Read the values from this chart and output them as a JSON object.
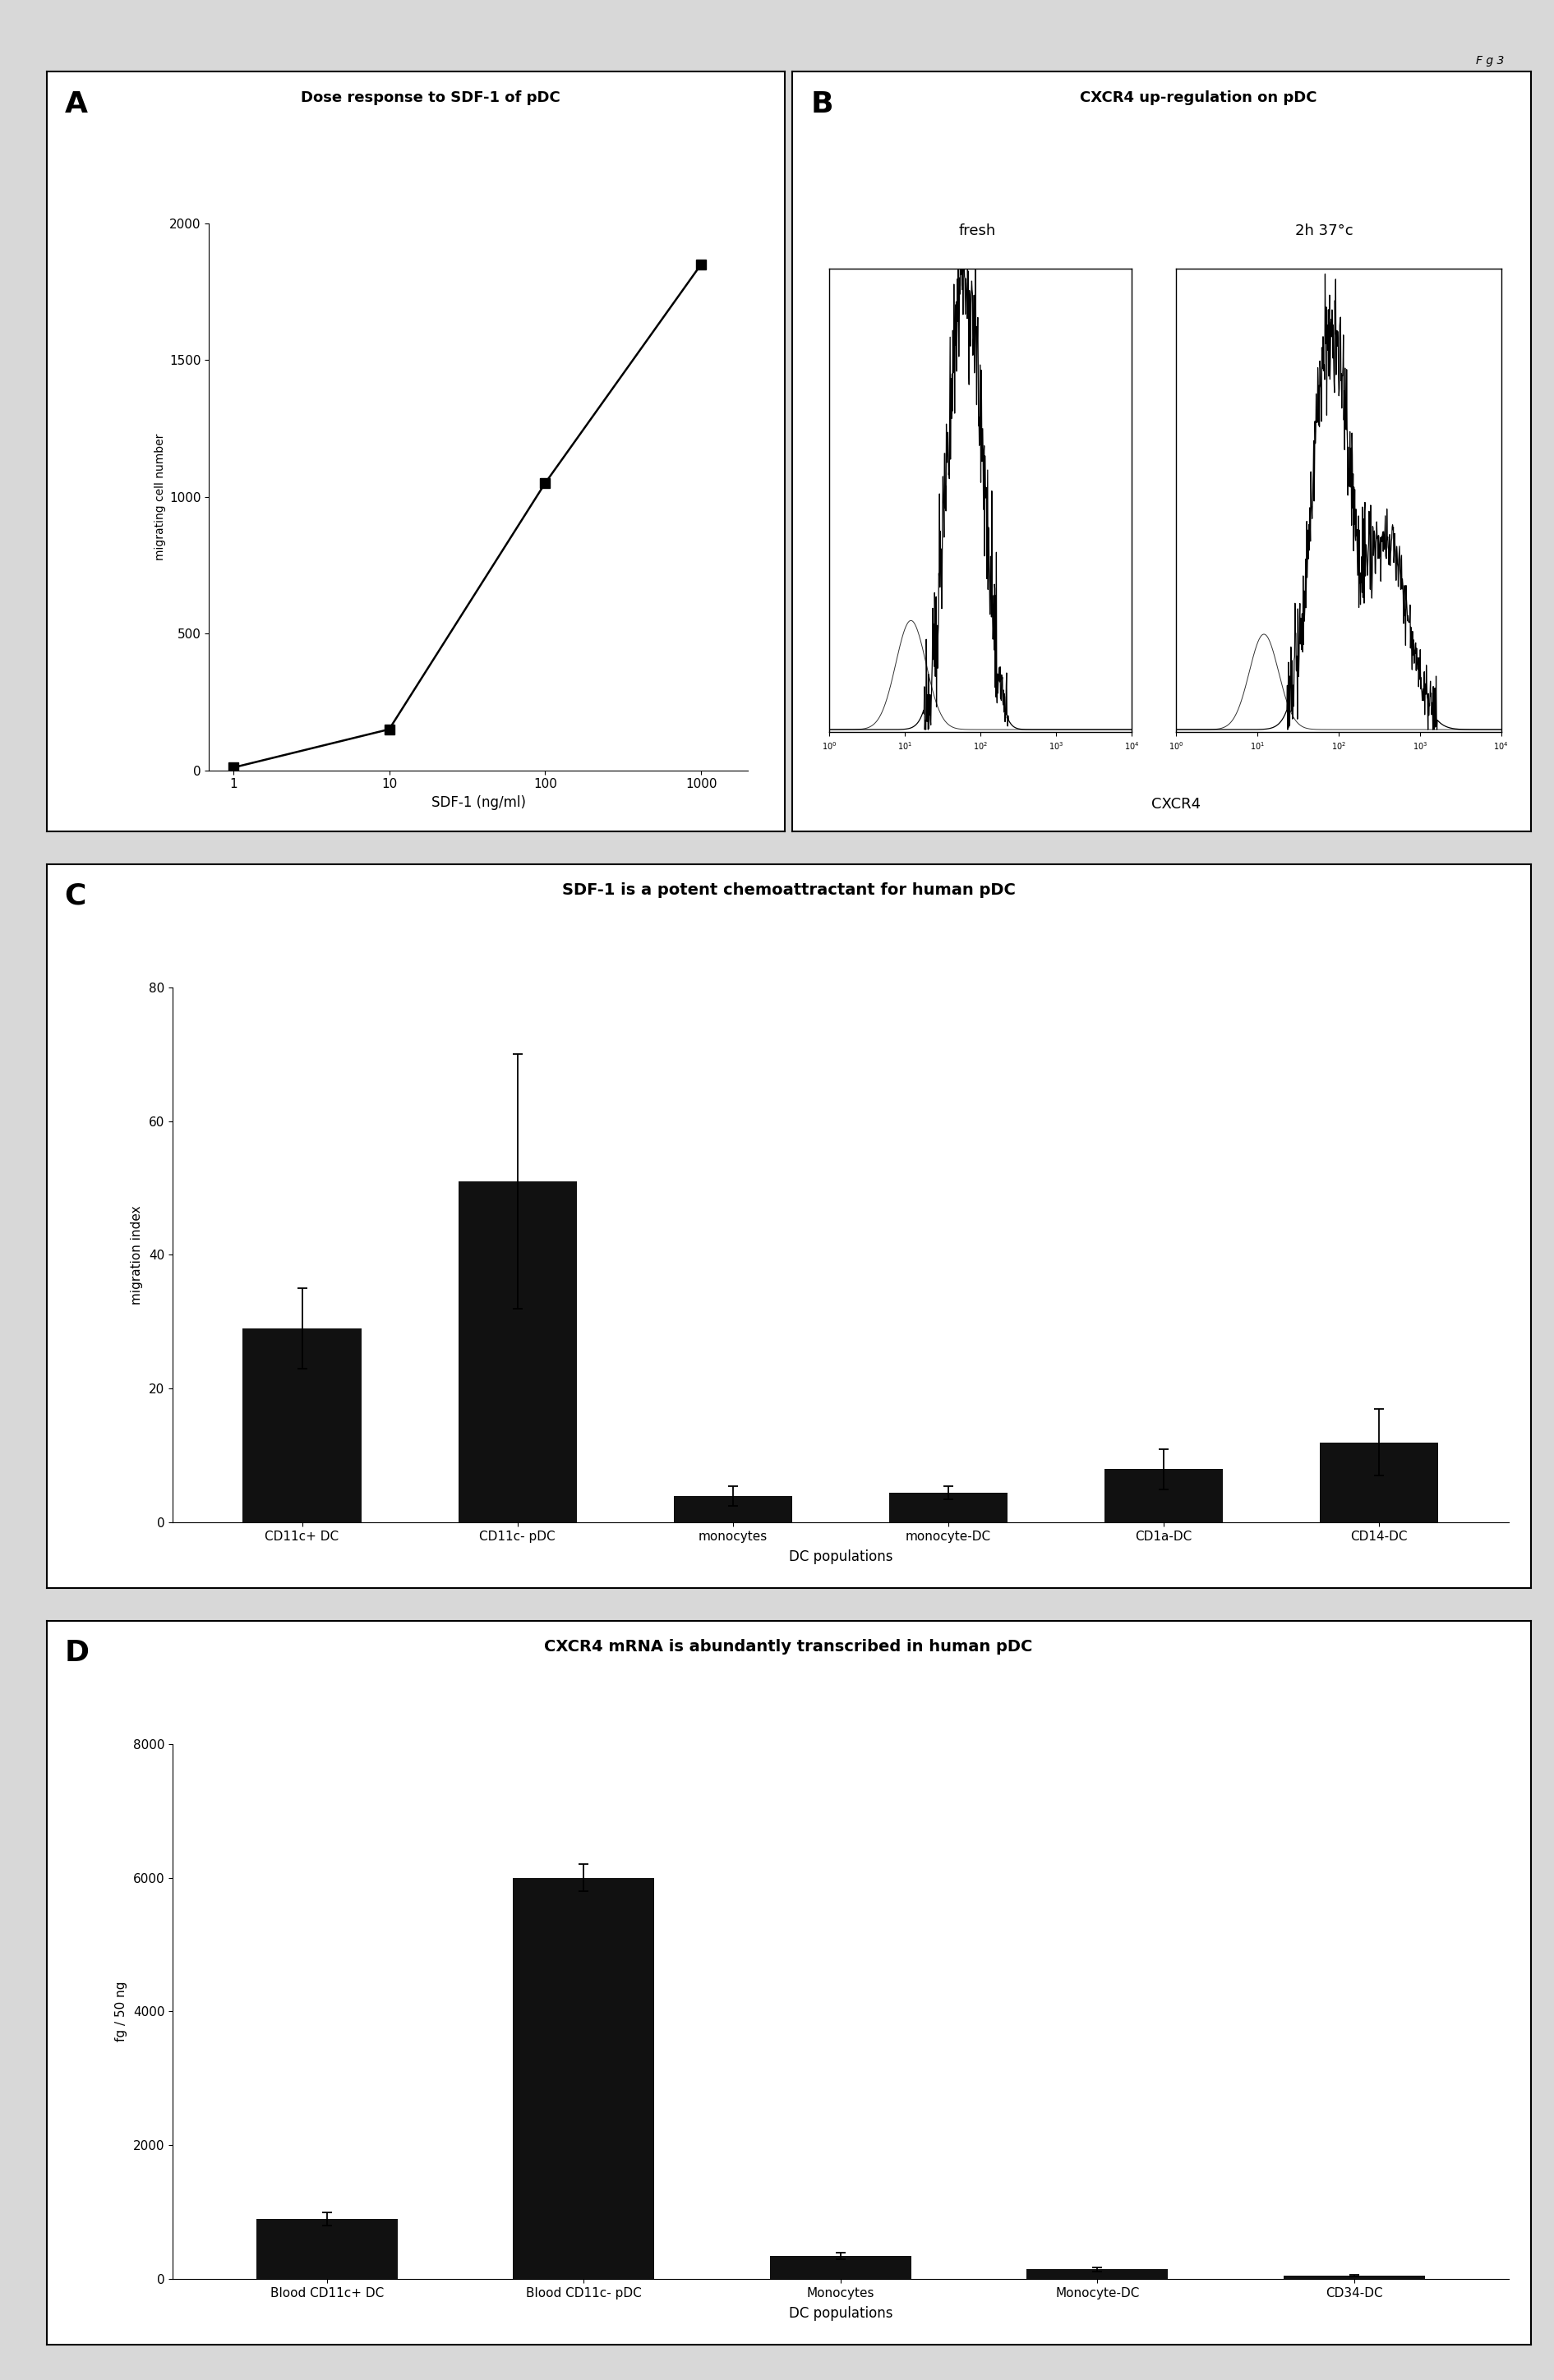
{
  "fig_label": "F g 3",
  "panel_A": {
    "title": "Dose response to SDF-1 of pDC",
    "xlabel": "SDF-1 (ng/ml)",
    "ylabel": "migrating cell number",
    "x": [
      1,
      10,
      100,
      1000
    ],
    "y": [
      10,
      150,
      1050,
      1850
    ],
    "ylim": [
      0,
      2000
    ],
    "yticks": [
      0,
      500,
      1000,
      1500,
      2000
    ],
    "xticks": [
      1,
      10,
      100,
      1000
    ]
  },
  "panel_B": {
    "title": "CXCR4 up-regulation on pDC",
    "xlabel": "CXCR4",
    "label_fresh": "fresh",
    "label_warm": "2h 37°c"
  },
  "panel_C": {
    "title": "SDF-1 is a potent chemoattractant for human pDC",
    "xlabel": "DC populations",
    "ylabel": "migration index",
    "categories": [
      "CD11c+ DC",
      "CD11c- pDC",
      "monocytes",
      "monocyte-DC",
      "CD1a-DC",
      "CD14-DC"
    ],
    "values": [
      29,
      51,
      4,
      4.5,
      8,
      12
    ],
    "errors": [
      6,
      19,
      1.5,
      1,
      3,
      5
    ],
    "ylim": [
      0,
      80
    ],
    "yticks": [
      0,
      20,
      40,
      60,
      80
    ]
  },
  "panel_D": {
    "title": "CXCR4 mRNA is abundantly transcribed in human pDC",
    "xlabel": "DC populations",
    "ylabel": "fg / 50 ng",
    "categories": [
      "Blood CD11c+ DC",
      "Blood CD11c- pDC",
      "Monocytes",
      "Monocyte-DC",
      "CD34-DC"
    ],
    "values": [
      900,
      6000,
      350,
      150,
      50
    ],
    "errors": [
      100,
      200,
      50,
      30,
      10
    ],
    "ylim": [
      0,
      8000
    ],
    "yticks": [
      0,
      2000,
      4000,
      6000,
      8000
    ]
  },
  "bar_color": "#111111",
  "fig_bg": "#d8d8d8",
  "panel_bg": "#ffffff"
}
